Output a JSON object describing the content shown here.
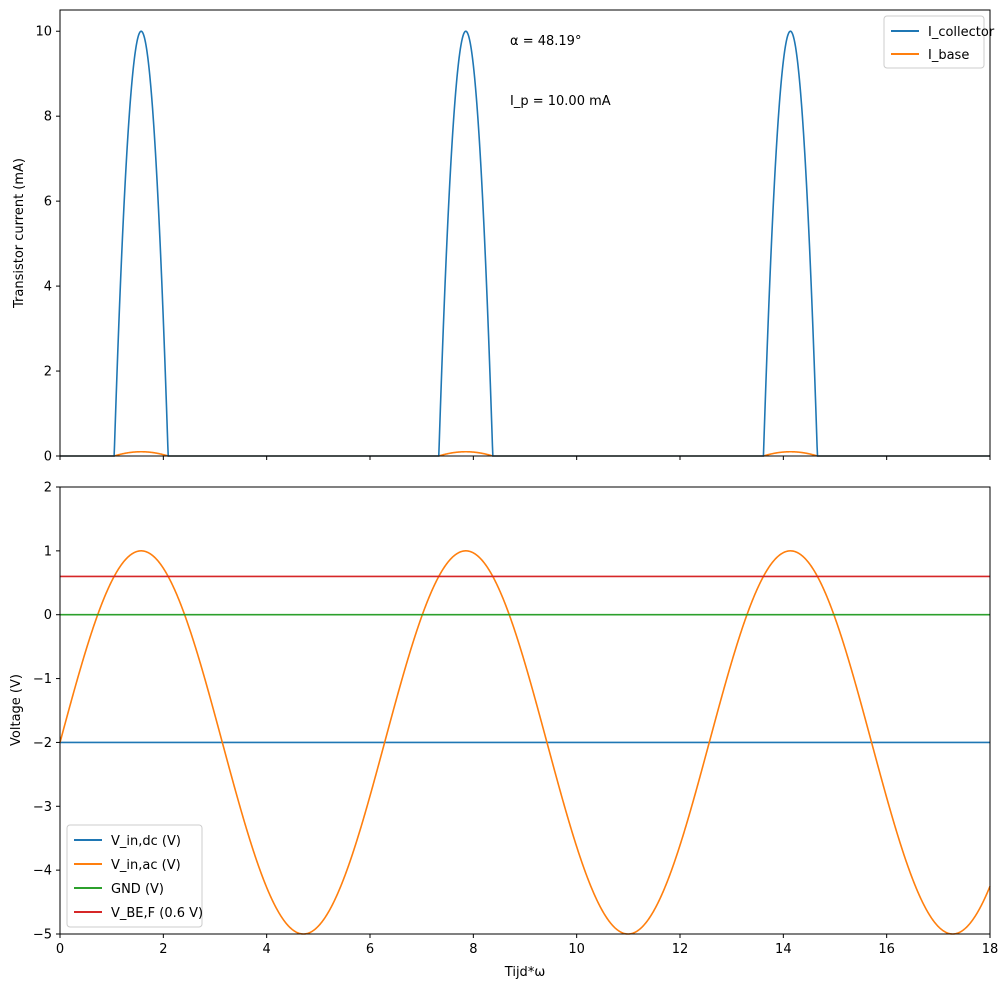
{
  "chart_data": [
    {
      "type": "line",
      "ylabel": "Transistor current (mA)",
      "xlim": [
        0,
        18
      ],
      "ylim": [
        0,
        10.5
      ],
      "yticks": [
        0,
        2,
        4,
        6,
        8,
        10
      ],
      "xticks": [
        0,
        2,
        4,
        6,
        8,
        10,
        12,
        14,
        16,
        18
      ],
      "x_tick_labels_shown": false,
      "grid": false,
      "legend_placement": "top-right",
      "annotations": [
        {
          "text": "α = 48.19°",
          "x": 8.7,
          "y": 9.7
        },
        {
          "text": "I_p = 10.00 mA",
          "x": 8.7,
          "y": 8.3
        }
      ],
      "model": {
        "v_dc": -2.0,
        "v_ac_amplitude": 3.0,
        "v_be_forward": 0.6,
        "peak_current_ma": 10.0,
        "beta": 100
      },
      "series": [
        {
          "name": "I_collector",
          "color": "#1f77b4",
          "description": "pulses peaking at 10 mA near x = 1.57, 7.85, 14.14; zero elsewhere"
        },
        {
          "name": "I_base",
          "color": "#ff7f0e",
          "description": "small bumps peaking at 0.1 mA, same timing"
        }
      ]
    },
    {
      "type": "line",
      "xlabel": "Tijd*ω",
      "ylabel": "Voltage (V)",
      "xlim": [
        0,
        18
      ],
      "ylim": [
        -5,
        2
      ],
      "yticks": [
        -5,
        -4,
        -3,
        -2,
        -1,
        0,
        1,
        2
      ],
      "xticks": [
        0,
        2,
        4,
        6,
        8,
        10,
        12,
        14,
        16,
        18
      ],
      "grid": false,
      "legend_placement": "bottom-left",
      "series": [
        {
          "name": "V_in,dc (V)",
          "color": "#1f77b4",
          "constant": -2.0
        },
        {
          "name": "V_in,ac (V)",
          "color": "#ff7f0e",
          "formula": "-2 + 3*sin(x)",
          "max": 1.0,
          "min": -5.0
        },
        {
          "name": "GND (V)",
          "color": "#2ca02c",
          "constant": 0.0
        },
        {
          "name": "V_BE,F (0.6 V)",
          "color": "#d62728",
          "constant": 0.6
        }
      ]
    }
  ]
}
